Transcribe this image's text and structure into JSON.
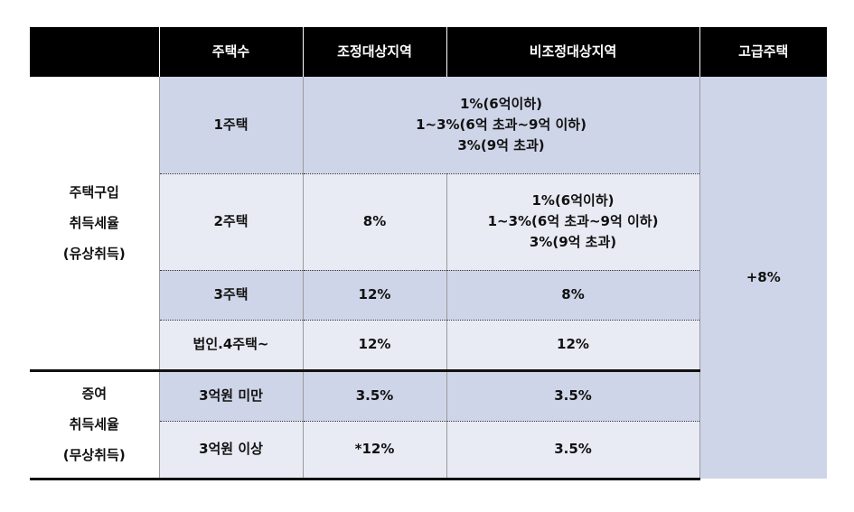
{
  "header": {
    "c1": "",
    "c2": "주택수",
    "c3": "조정대상지역",
    "c4": "비조정대상지역",
    "c5": "고급주택"
  },
  "purchase": {
    "label": [
      "주택구입",
      "취득세율",
      "(유상취득)"
    ],
    "rows": [
      {
        "count": "1주택",
        "merged": [
          "1%(6억이하)",
          "1~3%(6억 초과~9억 이하)",
          "3%(9억 초과)"
        ]
      },
      {
        "count": "2주택",
        "adjusted": "8%",
        "non_adjusted": [
          "1%(6억이하)",
          "1~3%(6억 초과~9억 이하)",
          "3%(9억 초과)"
        ]
      },
      {
        "count": "3주택",
        "adjusted": "12%",
        "non_adjusted": "8%"
      },
      {
        "count": "법인.4주택~",
        "adjusted": "12%",
        "non_adjusted": "12%"
      }
    ]
  },
  "gift": {
    "label": [
      "증여",
      "취득세율",
      "(무상취득)"
    ],
    "rows": [
      {
        "count": "3억원 미만",
        "adjusted": "3.5%",
        "non_adjusted": "3.5%"
      },
      {
        "count": "3억원 이상",
        "adjusted": "*12%",
        "non_adjusted": "3.5%"
      }
    ]
  },
  "luxury": "+8%"
}
